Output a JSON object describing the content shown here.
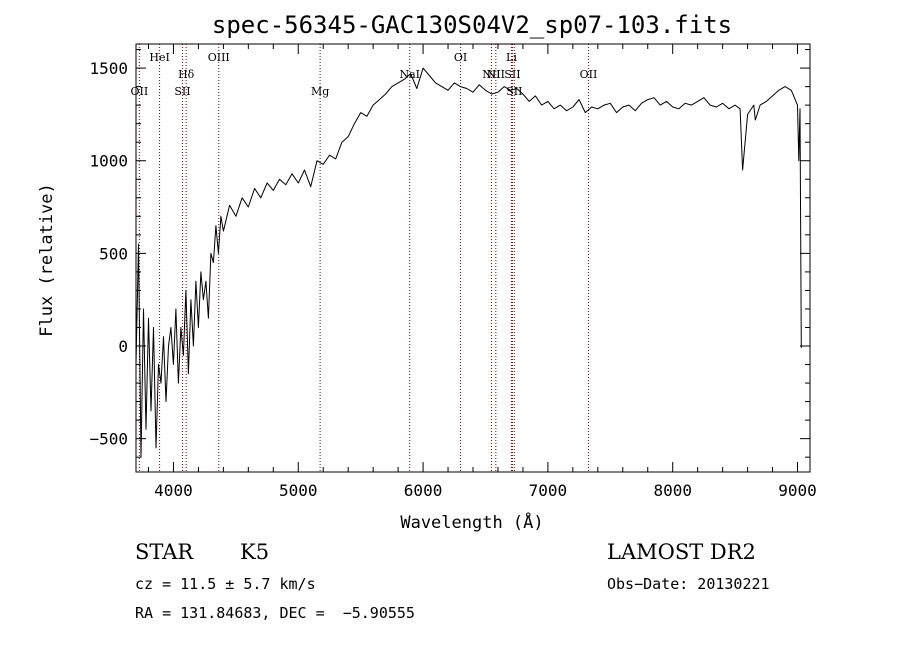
{
  "chart_data": {
    "type": "line",
    "title": "spec-56345-GAC130S04V2_sp07-103.fits",
    "xlabel": "Wavelength (Å)",
    "ylabel": "Flux (relative)",
    "xlim": [
      3700,
      9100
    ],
    "ylim": [
      -680,
      1630
    ],
    "x_ticks": [
      4000,
      5000,
      6000,
      7000,
      8000,
      9000
    ],
    "x_tick_labels": [
      "4000",
      "5000",
      "6000",
      "7000",
      "8000",
      "9000"
    ],
    "y_ticks": [
      -500,
      0,
      500,
      1000,
      1500
    ],
    "y_tick_labels": [
      "−500",
      "0",
      "500",
      "1000",
      "1500"
    ],
    "series": [
      {
        "name": "spectrum",
        "x": [
          3700,
          3720,
          3740,
          3760,
          3780,
          3800,
          3820,
          3840,
          3860,
          3880,
          3900,
          3920,
          3940,
          3960,
          3980,
          4000,
          4020,
          4040,
          4060,
          4080,
          4100,
          4120,
          4140,
          4160,
          4180,
          4200,
          4220,
          4240,
          4260,
          4280,
          4300,
          4320,
          4340,
          4360,
          4380,
          4400,
          4450,
          4500,
          4550,
          4600,
          4650,
          4700,
          4750,
          4800,
          4850,
          4900,
          4950,
          5000,
          5050,
          5100,
          5150,
          5200,
          5250,
          5300,
          5350,
          5400,
          5450,
          5500,
          5550,
          5600,
          5650,
          5700,
          5750,
          5800,
          5850,
          5900,
          5950,
          6000,
          6050,
          6100,
          6150,
          6200,
          6250,
          6300,
          6350,
          6400,
          6450,
          6500,
          6550,
          6600,
          6650,
          6700,
          6750,
          6800,
          6850,
          6900,
          6950,
          7000,
          7050,
          7100,
          7150,
          7200,
          7250,
          7300,
          7350,
          7400,
          7450,
          7500,
          7550,
          7600,
          7650,
          7700,
          7750,
          7800,
          7850,
          7900,
          7950,
          8000,
          8050,
          8100,
          8150,
          8200,
          8250,
          8300,
          8350,
          8400,
          8450,
          8500,
          8540,
          8560,
          8600,
          8650,
          8662,
          8700,
          8750,
          8800,
          8850,
          8900,
          8950,
          9000,
          9010,
          9020,
          9030
        ],
        "values": [
          -100,
          550,
          -600,
          200,
          -450,
          150,
          -350,
          100,
          -550,
          -100,
          -200,
          50,
          -300,
          0,
          100,
          -100,
          200,
          -200,
          100,
          -50,
          300,
          -150,
          250,
          0,
          350,
          100,
          400,
          250,
          350,
          150,
          500,
          450,
          650,
          500,
          700,
          620,
          760,
          700,
          800,
          750,
          850,
          800,
          880,
          840,
          900,
          870,
          930,
          880,
          950,
          860,
          1000,
          980,
          1030,
          1010,
          1100,
          1130,
          1200,
          1260,
          1240,
          1300,
          1330,
          1360,
          1400,
          1420,
          1440,
          1470,
          1390,
          1500,
          1460,
          1420,
          1400,
          1380,
          1420,
          1400,
          1390,
          1370,
          1410,
          1380,
          1360,
          1370,
          1400,
          1380,
          1390,
          1360,
          1320,
          1350,
          1300,
          1320,
          1280,
          1300,
          1270,
          1290,
          1330,
          1260,
          1290,
          1280,
          1300,
          1310,
          1260,
          1290,
          1300,
          1270,
          1310,
          1330,
          1340,
          1300,
          1320,
          1290,
          1280,
          1310,
          1300,
          1320,
          1340,
          1300,
          1290,
          1310,
          1280,
          1300,
          1280,
          950,
          1250,
          1300,
          1220,
          1300,
          1320,
          1350,
          1380,
          1400,
          1380,
          1300,
          1000,
          1280,
          -10
        ]
      }
    ],
    "emission_lines": [
      {
        "label": "OII",
        "x": 3727,
        "row": 2
      },
      {
        "label": "HeI",
        "x": 3889,
        "row": 0
      },
      {
        "label": "Hδ",
        "x": 4102,
        "row": 1
      },
      {
        "label": "SII",
        "x": 4072,
        "row": 2
      },
      {
        "label": "OIII",
        "x": 4363,
        "row": 0
      },
      {
        "label": "Mg",
        "x": 5175,
        "row": 2
      },
      {
        "label": "NaI",
        "x": 5893,
        "row": 1
      },
      {
        "label": "OI",
        "x": 6300,
        "row": 0
      },
      {
        "label": "NII",
        "x": 6548,
        "row": 1
      },
      {
        "label": "NII",
        "x": 6583,
        "row": 1
      },
      {
        "label": "Li",
        "x": 6708,
        "row": 0
      },
      {
        "label": "SII",
        "x": 6716,
        "row": 1
      },
      {
        "label": "SII",
        "x": 6731,
        "row": 2
      },
      {
        "label": "OII",
        "x": 7325,
        "row": 1
      }
    ]
  },
  "info": {
    "class_label": "STAR",
    "subclass": "K5",
    "redshift": "cz = 11.5 ± 5.7 km/s",
    "coords": "RA = 131.84683, DEC =  −5.90555",
    "survey": "LAMOST DR2",
    "obs_date": "Obs−Date: 20130221"
  },
  "colors": {
    "line": "#000000",
    "marker": "#8b0000",
    "background": "#ffffff"
  }
}
